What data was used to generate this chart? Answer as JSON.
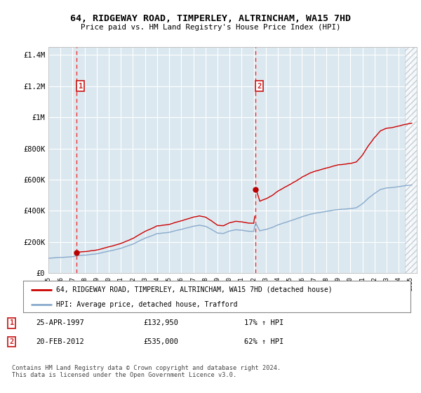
{
  "title": "64, RIDGEWAY ROAD, TIMPERLEY, ALTRINCHAM, WA15 7HD",
  "subtitle": "Price paid vs. HM Land Registry's House Price Index (HPI)",
  "transactions": [
    {
      "date": 1997.32,
      "price": 132950,
      "label": "1"
    },
    {
      "date": 2012.13,
      "price": 535000,
      "label": "2"
    }
  ],
  "transaction_dates_vline": [
    1997.32,
    2012.13
  ],
  "legend_entry1": "64, RIDGEWAY ROAD, TIMPERLEY, ALTRINCHAM, WA15 7HD (detached house)",
  "legend_entry2": "HPI: Average price, detached house, Trafford",
  "table_rows": [
    {
      "num": "1",
      "date": "25-APR-1997",
      "price": "£132,950",
      "change": "17% ↑ HPI"
    },
    {
      "num": "2",
      "date": "20-FEB-2012",
      "price": "£535,000",
      "change": "62% ↑ HPI"
    }
  ],
  "footer": "Contains HM Land Registry data © Crown copyright and database right 2024.\nThis data is licensed under the Open Government Licence v3.0.",
  "ylim": [
    0,
    1450000
  ],
  "xlim": [
    1995.0,
    2025.5
  ],
  "yticks": [
    0,
    200000,
    400000,
    600000,
    800000,
    1000000,
    1200000,
    1400000
  ],
  "ytick_labels": [
    "£0",
    "£200K",
    "£400K",
    "£600K",
    "£800K",
    "£1M",
    "£1.2M",
    "£1.4M"
  ],
  "xticks": [
    1995,
    1996,
    1997,
    1998,
    1999,
    2000,
    2001,
    2002,
    2003,
    2004,
    2005,
    2006,
    2007,
    2008,
    2009,
    2010,
    2011,
    2012,
    2013,
    2014,
    2015,
    2016,
    2017,
    2018,
    2019,
    2020,
    2021,
    2022,
    2023,
    2024,
    2025
  ],
  "property_color": "#cc0000",
  "hpi_color": "#88aacc",
  "vline_color": "#ee3333",
  "dot_color": "#bb0000",
  "bg_color": "#dce8f0",
  "grid_color": "#ffffff",
  "label_box_color": "#cc2222",
  "hatch_start": 2024.5
}
